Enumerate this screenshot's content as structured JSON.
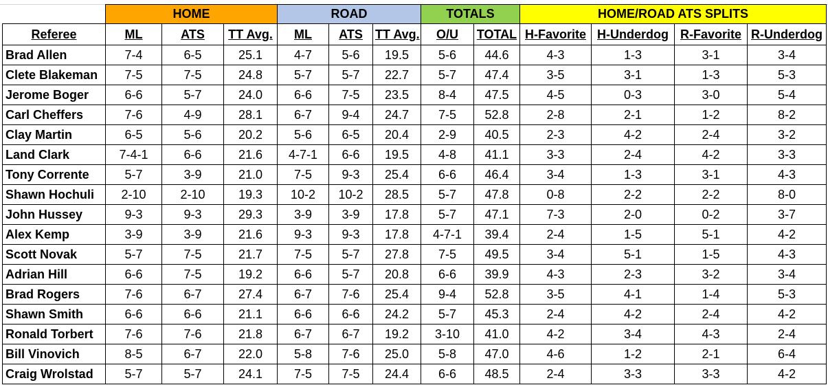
{
  "groups": {
    "home": "HOME",
    "road": "ROAD",
    "totals": "TOTALS",
    "splits": "HOME/ROAD ATS SPLITS"
  },
  "columns": [
    "Referee",
    "ML",
    "ATS",
    "TT Avg.",
    "ML",
    "ATS",
    "TT Avg.",
    "O/U",
    "TOTAL",
    "H-Favorite",
    "H-Underdog",
    "R-Favorite",
    "R-Underdog"
  ],
  "rows": [
    [
      "Brad Allen",
      "7-4",
      "6-5",
      "25.1",
      "4-7",
      "5-6",
      "19.5",
      "5-6",
      "44.6",
      "4-3",
      "1-3",
      "3-1",
      "3-4"
    ],
    [
      "Clete Blakeman",
      "7-5",
      "7-5",
      "24.8",
      "5-7",
      "5-7",
      "22.7",
      "5-7",
      "47.4",
      "3-5",
      "3-1",
      "1-3",
      "5-3"
    ],
    [
      "Jerome Boger",
      "6-6",
      "5-7",
      "24.0",
      "6-6",
      "7-5",
      "23.5",
      "8-4",
      "47.5",
      "4-5",
      "0-3",
      "3-0",
      "5-4"
    ],
    [
      "Carl Cheffers",
      "7-6",
      "4-9",
      "28.1",
      "6-7",
      "9-4",
      "24.7",
      "7-5",
      "52.8",
      "2-8",
      "2-1",
      "1-2",
      "8-2"
    ],
    [
      "Clay Martin",
      "6-5",
      "5-6",
      "20.2",
      "5-6",
      "6-5",
      "20.4",
      "2-9",
      "40.5",
      "2-3",
      "4-2",
      "2-4",
      "3-2"
    ],
    [
      "Land Clark",
      "7-4-1",
      "6-6",
      "21.6",
      "4-7-1",
      "6-6",
      "19.5",
      "4-8",
      "41.1",
      "3-3",
      "2-4",
      "4-2",
      "3-3"
    ],
    [
      "Tony Corrente",
      "5-7",
      "3-9",
      "21.0",
      "7-5",
      "9-3",
      "25.4",
      "6-6",
      "46.4",
      "3-4",
      "1-3",
      "3-1",
      "4-3"
    ],
    [
      "Shawn Hochuli",
      "2-10",
      "2-10",
      "19.3",
      "10-2",
      "10-2",
      "28.5",
      "5-7",
      "47.8",
      "0-8",
      "2-2",
      "2-2",
      "8-0"
    ],
    [
      "John Hussey",
      "9-3",
      "9-3",
      "29.3",
      "3-9",
      "3-9",
      "17.8",
      "5-7",
      "47.1",
      "7-3",
      "2-0",
      "0-2",
      "3-7"
    ],
    [
      "Alex Kemp",
      "3-9",
      "3-9",
      "21.6",
      "9-3",
      "9-3",
      "17.8",
      "4-7-1",
      "39.4",
      "2-4",
      "1-5",
      "5-1",
      "4-2"
    ],
    [
      "Scott Novak",
      "5-7",
      "7-5",
      "21.7",
      "7-5",
      "5-7",
      "27.8",
      "7-5",
      "49.5",
      "3-4",
      "5-1",
      "1-5",
      "4-3"
    ],
    [
      "Adrian Hill",
      "6-6",
      "7-5",
      "19.2",
      "6-6",
      "5-7",
      "20.8",
      "6-6",
      "39.9",
      "4-3",
      "2-3",
      "3-2",
      "3-4"
    ],
    [
      "Brad Rogers",
      "7-6",
      "6-7",
      "27.4",
      "6-7",
      "7-6",
      "25.4",
      "9-4",
      "52.8",
      "3-5",
      "4-1",
      "1-4",
      "5-3"
    ],
    [
      "Shawn Smith",
      "6-6",
      "6-6",
      "21.1",
      "6-6",
      "6-6",
      "24.2",
      "5-7",
      "45.3",
      "2-4",
      "4-2",
      "2-4",
      "4-2"
    ],
    [
      "Ronald Torbert",
      "7-6",
      "7-6",
      "21.8",
      "6-7",
      "6-7",
      "19.2",
      "3-10",
      "41.0",
      "4-2",
      "3-4",
      "4-3",
      "2-4"
    ],
    [
      "Bill Vinovich",
      "8-5",
      "6-7",
      "22.0",
      "5-8",
      "7-6",
      "25.0",
      "5-8",
      "47.0",
      "4-6",
      "1-2",
      "2-1",
      "6-4"
    ],
    [
      "Craig Wrolstad",
      "5-7",
      "5-7",
      "24.1",
      "7-5",
      "7-5",
      "24.4",
      "6-6",
      "48.5",
      "2-4",
      "3-3",
      "3-3",
      "4-2"
    ]
  ],
  "colors": {
    "home": "#ffa500",
    "road": "#b4c6e7",
    "totals": "#92d050",
    "splits": "#ffff00"
  }
}
